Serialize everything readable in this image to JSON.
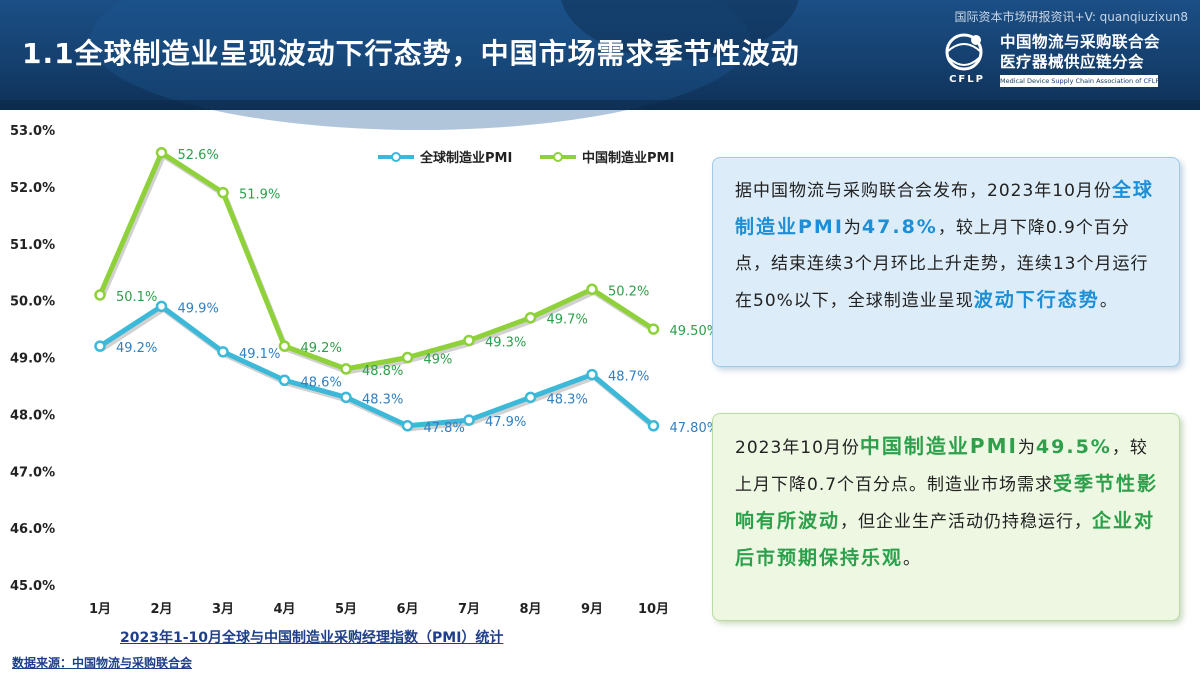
{
  "header": {
    "title": "1.1全球制造业呈现波动下行态势，中国市场需求季节性波动",
    "watermark": "国际资本市场研报资讯+V: quanqiuzixun8",
    "logo": {
      "cn_line1": "中国物流与采购联合会",
      "cn_line2": "医疗器械供应链分会",
      "abbr": "CFLP",
      "en": "Medical Device Supply Chain Association of CFLP"
    }
  },
  "chart_data": {
    "type": "line",
    "categories": [
      "1月",
      "2月",
      "3月",
      "4月",
      "5月",
      "6月",
      "7月",
      "8月",
      "9月",
      "10月"
    ],
    "ylim": [
      45.0,
      53.0
    ],
    "yticks": [
      "45.0%",
      "46.0%",
      "47.0%",
      "48.0%",
      "49.0%",
      "50.0%",
      "51.0%",
      "52.0%",
      "53.0%"
    ],
    "series": [
      {
        "name": "全球制造业PMI",
        "color": "#3cb8d8",
        "values": [
          49.2,
          49.9,
          49.1,
          48.6,
          48.3,
          47.8,
          47.9,
          48.3,
          48.7,
          47.8
        ],
        "labels": [
          "49.2%",
          "49.9%",
          "49.1%",
          "48.6%",
          "48.3%",
          "47.8%",
          "47.9%",
          "48.3%",
          "48.7%",
          "47.80%"
        ]
      },
      {
        "name": "中国制造业PMI",
        "color": "#8fd13a",
        "values": [
          50.1,
          52.6,
          51.9,
          49.2,
          48.8,
          49.0,
          49.3,
          49.7,
          50.2,
          49.5
        ],
        "labels": [
          "50.1%",
          "52.6%",
          "51.9%",
          "49.2%",
          "48.8%",
          "49%",
          "49.3%",
          "49.7%",
          "50.2%",
          "49.50%"
        ]
      }
    ],
    "legend_position": "top-right",
    "caption": "2023年1-10月全球与中国制造业采购经理指数（PMI）统计",
    "source": "数据来源：中国物流与采购联合会"
  },
  "box_global": {
    "t1": "据中国物流与采购联合会发布，2023年10月份",
    "h1": "全球制造业PMI",
    "t2": "为",
    "h2": "47.8%",
    "t3": "，较上月下降0.9个百分点，结束连续3个月环比上升走势，连续13个月运行在50%以下，全球制造业呈现",
    "h3": "波动下行态势",
    "t4": "。"
  },
  "box_china": {
    "t1": "2023年10月份",
    "h1": "中国制造业PMI",
    "t2": "为",
    "h2": "49.5%",
    "t3": "，较上月下降0.7个百分点。制造业市场需求",
    "h3": "受季节性影响有所波动",
    "t4": "，但企业生产活动仍持稳运行，",
    "h4": "企业对后市预期保持乐观",
    "t5": "。"
  }
}
